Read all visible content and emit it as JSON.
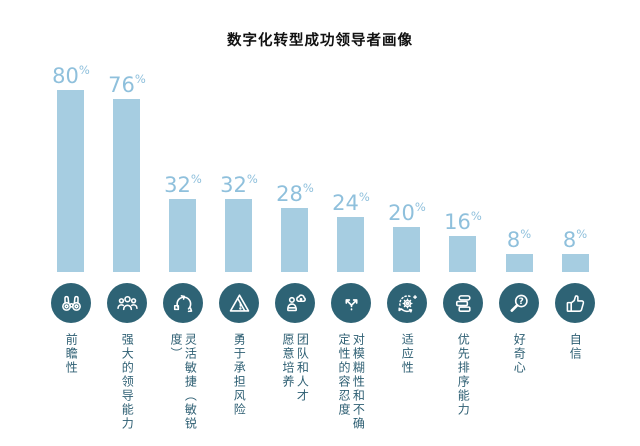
{
  "title": "数字化转型成功领导者画像",
  "chart_data": {
    "type": "bar",
    "title": "数字化转型成功领导者画像",
    "xlabel": "",
    "ylabel": "",
    "unit": "%",
    "ylim": [
      0,
      100
    ],
    "grid": false,
    "legend": "none",
    "categories": [
      "前瞻性",
      "强大的领导能力",
      "灵活敏捷（敏锐度）",
      "勇于承担风险",
      "团队和人才愿意培养",
      "对模糊性和不确定性的容忍度",
      "适应性",
      "优先排序能力",
      "好奇心",
      "自信"
    ],
    "values": [
      80,
      76,
      32,
      32,
      28,
      24,
      20,
      16,
      8,
      8
    ],
    "percent_sign": "%",
    "bars": [
      {
        "value_label": "80",
        "label_display": "前瞻性",
        "icon": "binoculars-icon"
      },
      {
        "value_label": "76",
        "label_display": "强大的领导能力",
        "icon": "team-icon"
      },
      {
        "value_label": "32",
        "label_display": "灵活敏捷（敏锐度）",
        "icon": "agile-cycle-icon"
      },
      {
        "value_label": "32",
        "label_display": "勇于承担风险",
        "icon": "warning-triangle-icon"
      },
      {
        "value_label": "28",
        "label_display": "团队和人才\n愿意培养",
        "icon": "talent-training-icon"
      },
      {
        "value_label": "24",
        "label_display": "对模糊性和不确\n定性的容忍度",
        "icon": "fork-arrows-icon"
      },
      {
        "value_label": "20",
        "label_display": "适应性",
        "icon": "gear-orbit-icon"
      },
      {
        "value_label": "16",
        "label_display": "优先排序能力",
        "icon": "stacked-list-icon"
      },
      {
        "value_label": "8",
        "label_display": "好奇心",
        "icon": "magnifier-question-icon"
      },
      {
        "value_label": "8",
        "label_display": "自信",
        "icon": "thumbs-up-icon"
      }
    ],
    "colors": {
      "bar": "#a6cde1",
      "value_text": "#8fc0dc",
      "icon_circle": "#2e6375",
      "icon_glyph": "#ffffff",
      "label_text": "#2e5f73",
      "title_text": "#111111",
      "background": "#ffffff"
    }
  }
}
